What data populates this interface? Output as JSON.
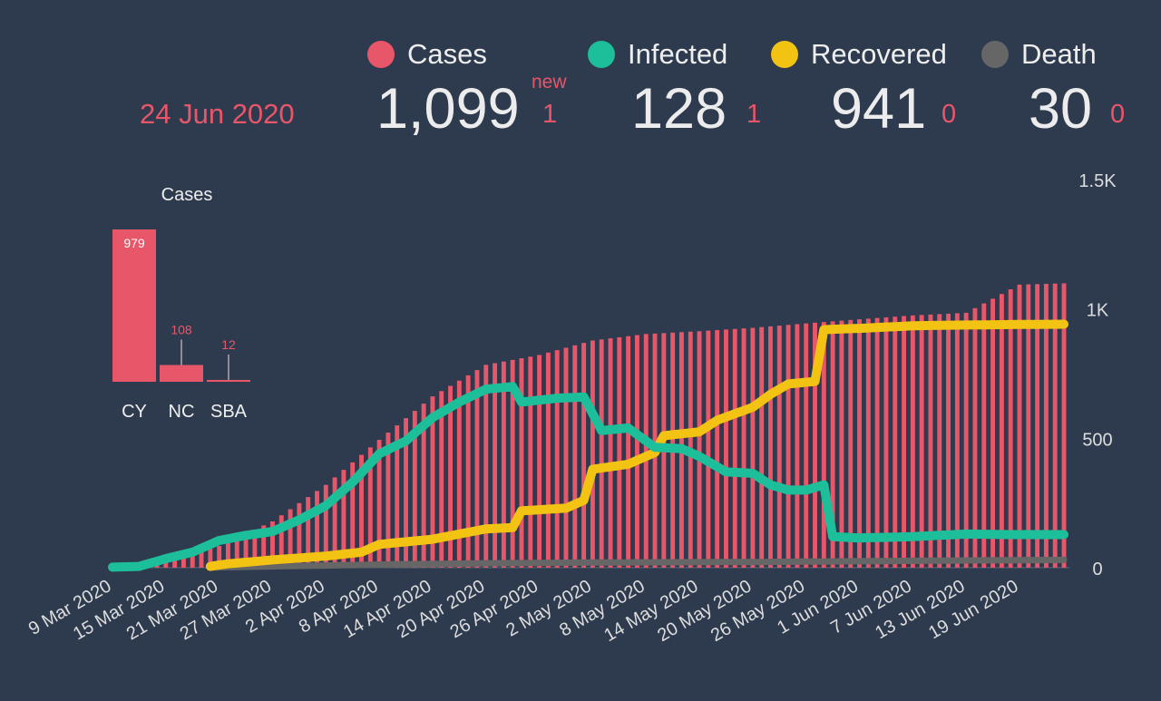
{
  "header": {
    "date": "24 Jun 2020",
    "new_label": "new",
    "stats": [
      {
        "label": "Cases",
        "value": "1,099",
        "delta": "1",
        "color": "#e8566a"
      },
      {
        "label": "Infected",
        "value": "128",
        "delta": "1",
        "color": "#1dbf9b"
      },
      {
        "label": "Recovered",
        "value": "941",
        "delta": "0",
        "color": "#f2c313"
      },
      {
        "label": "Death",
        "value": "30",
        "delta": "0",
        "color": "#666666"
      }
    ]
  },
  "chart_data": [
    {
      "type": "bar",
      "title": "Cases",
      "categories": [
        "CY",
        "NC",
        "SBA"
      ],
      "values": [
        979,
        108,
        12
      ],
      "value_labels": [
        "979",
        "108",
        "12"
      ],
      "color": "#e8566a"
    },
    {
      "type": "bar+line",
      "x_start": "2020-03-09",
      "x_end": "2020-06-24",
      "xtick_labels": [
        "9 Mar 2020",
        "15 Mar 2020",
        "21 Mar 2020",
        "27 Mar 2020",
        "2 Apr 2020",
        "8 Apr 2020",
        "14 Apr 2020",
        "20 Apr 2020",
        "26 Apr 2020",
        "2 May 2020",
        "8 May 2020",
        "14 May 2020",
        "20 May 2020",
        "26 May 2020",
        "1 Jun 2020",
        "7 Jun 2020",
        "13 Jun 2020",
        "19 Jun 2020"
      ],
      "ytick_labels": [
        "0",
        "500",
        "1K",
        "1.5K"
      ],
      "ylim": [
        0,
        1500
      ],
      "y_axis": "right",
      "cases": {
        "name": "Cases",
        "color": "#e8566a",
        "keypoints": [
          [
            "2020-03-09",
            2
          ],
          [
            "2020-03-15",
            26
          ],
          [
            "2020-03-21",
            84
          ],
          [
            "2020-03-27",
            179
          ],
          [
            "2020-04-02",
            320
          ],
          [
            "2020-04-08",
            494
          ],
          [
            "2020-04-14",
            662
          ],
          [
            "2020-04-20",
            784
          ],
          [
            "2020-04-26",
            822
          ],
          [
            "2020-05-02",
            878
          ],
          [
            "2020-05-08",
            903
          ],
          [
            "2020-05-14",
            914
          ],
          [
            "2020-05-20",
            927
          ],
          [
            "2020-05-26",
            944
          ],
          [
            "2020-06-01",
            960
          ],
          [
            "2020-06-07",
            975
          ],
          [
            "2020-06-13",
            985
          ],
          [
            "2020-06-19",
            1094
          ],
          [
            "2020-06-24",
            1099
          ]
        ]
      },
      "series": [
        {
          "name": "Infected",
          "color": "#1dbf9b",
          "keypoints": [
            [
              "2020-03-09",
              2
            ],
            [
              "2020-03-12",
              5
            ],
            [
              "2020-03-15",
              35
            ],
            [
              "2020-03-18",
              60
            ],
            [
              "2020-03-21",
              105
            ],
            [
              "2020-03-24",
              125
            ],
            [
              "2020-03-27",
              140
            ],
            [
              "2020-03-30",
              185
            ],
            [
              "2020-04-02",
              240
            ],
            [
              "2020-04-05",
              330
            ],
            [
              "2020-04-08",
              440
            ],
            [
              "2020-04-11",
              490
            ],
            [
              "2020-04-14",
              580
            ],
            [
              "2020-04-17",
              640
            ],
            [
              "2020-04-20",
              690
            ],
            [
              "2020-04-23",
              700
            ],
            [
              "2020-04-24",
              640
            ],
            [
              "2020-04-28",
              655
            ],
            [
              "2020-05-01",
              660
            ],
            [
              "2020-05-03",
              530
            ],
            [
              "2020-05-06",
              540
            ],
            [
              "2020-05-09",
              465
            ],
            [
              "2020-05-12",
              460
            ],
            [
              "2020-05-14",
              430
            ],
            [
              "2020-05-17",
              370
            ],
            [
              "2020-05-20",
              365
            ],
            [
              "2020-05-22",
              320
            ],
            [
              "2020-05-24",
              300
            ],
            [
              "2020-05-26",
              300
            ],
            [
              "2020-05-28",
              320
            ],
            [
              "2020-05-29",
              120
            ],
            [
              "2020-06-01",
              115
            ],
            [
              "2020-06-07",
              120
            ],
            [
              "2020-06-13",
              130
            ],
            [
              "2020-06-18",
              128
            ],
            [
              "2020-06-24",
              128
            ]
          ]
        },
        {
          "name": "Recovered",
          "color": "#f2c313",
          "keypoints": [
            [
              "2020-03-20",
              5
            ],
            [
              "2020-03-22",
              15
            ],
            [
              "2020-03-27",
              30
            ],
            [
              "2020-04-02",
              45
            ],
            [
              "2020-04-06",
              60
            ],
            [
              "2020-04-08",
              90
            ],
            [
              "2020-04-14",
              110
            ],
            [
              "2020-04-17",
              130
            ],
            [
              "2020-04-20",
              150
            ],
            [
              "2020-04-23",
              155
            ],
            [
              "2020-04-24",
              220
            ],
            [
              "2020-04-29",
              230
            ],
            [
              "2020-05-01",
              260
            ],
            [
              "2020-05-02",
              380
            ],
            [
              "2020-05-06",
              400
            ],
            [
              "2020-05-09",
              445
            ],
            [
              "2020-05-10",
              510
            ],
            [
              "2020-05-14",
              525
            ],
            [
              "2020-05-16",
              570
            ],
            [
              "2020-05-20",
              620
            ],
            [
              "2020-05-22",
              670
            ],
            [
              "2020-05-24",
              710
            ],
            [
              "2020-05-27",
              720
            ],
            [
              "2020-05-28",
              920
            ],
            [
              "2020-06-01",
              925
            ],
            [
              "2020-06-07",
              935
            ],
            [
              "2020-06-13",
              938
            ],
            [
              "2020-06-19",
              940
            ],
            [
              "2020-06-24",
              941
            ]
          ]
        },
        {
          "name": "Death",
          "color": "#666666",
          "keypoints": [
            [
              "2020-03-20",
              1
            ],
            [
              "2020-03-27",
              5
            ],
            [
              "2020-04-08",
              12
            ],
            [
              "2020-04-20",
              17
            ],
            [
              "2020-05-02",
              20
            ],
            [
              "2020-05-20",
              22
            ],
            [
              "2020-06-01",
              25
            ],
            [
              "2020-06-13",
              28
            ],
            [
              "2020-06-24",
              30
            ]
          ]
        }
      ]
    }
  ]
}
